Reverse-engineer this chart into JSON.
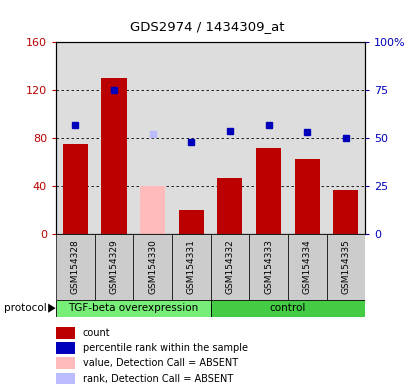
{
  "title": "GDS2974 / 1434309_at",
  "samples": [
    "GSM154328",
    "GSM154329",
    "GSM154330",
    "GSM154331",
    "GSM154332",
    "GSM154333",
    "GSM154334",
    "GSM154335"
  ],
  "bar_values": [
    75,
    130,
    null,
    20,
    47,
    72,
    63,
    37
  ],
  "bar_absent_values": [
    null,
    null,
    40,
    null,
    null,
    null,
    null,
    null
  ],
  "dot_values": [
    57,
    75,
    null,
    48,
    54,
    57,
    53,
    50
  ],
  "dot_absent_values": [
    null,
    null,
    52,
    null,
    null,
    null,
    null,
    null
  ],
  "bar_color": "#bb0000",
  "bar_absent_color": "#ffbbbb",
  "dot_color": "#0000bb",
  "dot_absent_color": "#bbbbff",
  "ylim_left": [
    0,
    160
  ],
  "ylim_right": [
    0,
    100
  ],
  "yticks_left": [
    0,
    40,
    80,
    120,
    160
  ],
  "ytick_labels_left": [
    "0",
    "40",
    "80",
    "120",
    "160"
  ],
  "yticks_right": [
    0,
    25,
    50,
    75,
    100
  ],
  "ytick_labels_right": [
    "0",
    "25",
    "50",
    "75",
    "100%"
  ],
  "protocol_groups": [
    {
      "label": "TGF-beta overexpression",
      "start": 0,
      "end": 4,
      "color": "#77ee77"
    },
    {
      "label": "control",
      "start": 4,
      "end": 8,
      "color": "#44cc44"
    }
  ],
  "bg_color": "#dddddd",
  "col_bg_color": "#cccccc",
  "legend_items": [
    {
      "label": "count",
      "color": "#bb0000"
    },
    {
      "label": "percentile rank within the sample",
      "color": "#0000bb"
    },
    {
      "label": "value, Detection Call = ABSENT",
      "color": "#ffbbbb"
    },
    {
      "label": "rank, Detection Call = ABSENT",
      "color": "#bbbbff"
    }
  ]
}
